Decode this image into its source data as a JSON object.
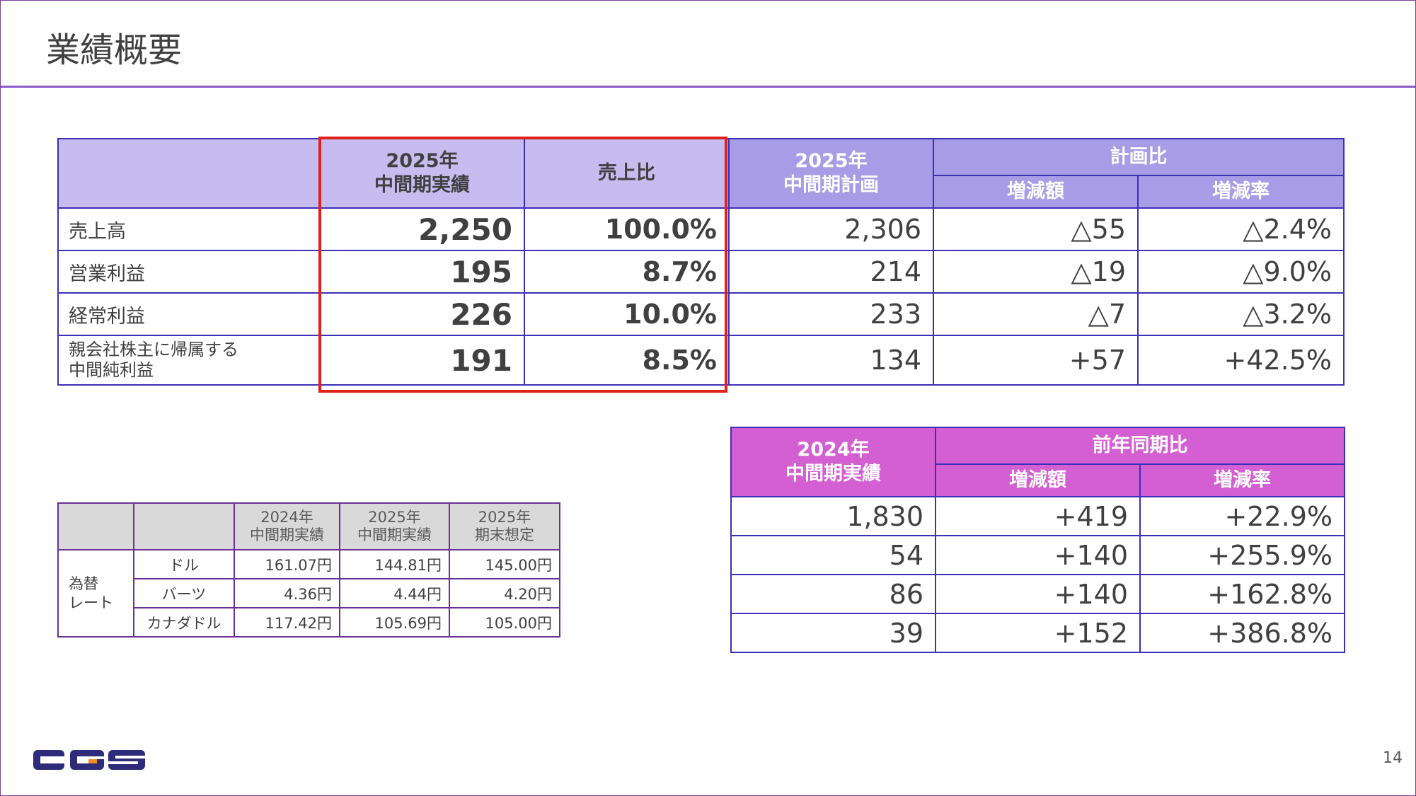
{
  "title": "業績概要",
  "page_number": "14",
  "logo_text": "CGS",
  "main_table": {
    "headers": {
      "actual": "2025年\n中間期実績",
      "ratio": "売上比",
      "plan": "2025年\n中間期計画",
      "vs_plan": "計画比",
      "diff": "増減額",
      "rate": "増減率"
    },
    "rows": [
      {
        "label": "売上高",
        "actual": "2,250",
        "ratio": "100.0%",
        "plan": "2,306",
        "diff": "△55",
        "rate": "△2.4%"
      },
      {
        "label": "営業利益",
        "actual": "195",
        "ratio": "8.7%",
        "plan": "214",
        "diff": "△19",
        "rate": "△9.0%"
      },
      {
        "label": "経常利益",
        "actual": "226",
        "ratio": "10.0%",
        "plan": "233",
        "diff": "△7",
        "rate": "△3.2%"
      },
      {
        "label": "親会社株主に帰属する\n中間純利益",
        "actual": "191",
        "ratio": "8.5%",
        "plan": "134",
        "diff": "+57",
        "rate": "+42.5%"
      }
    ]
  },
  "prior_table": {
    "headers": {
      "actual": "2024年\n中間期実績",
      "yoy": "前年同期比",
      "diff": "増減額",
      "rate": "増減率"
    },
    "rows": [
      {
        "actual": "1,830",
        "diff": "+419",
        "rate": "+22.9%"
      },
      {
        "actual": "54",
        "diff": "+140",
        "rate": "+255.9%"
      },
      {
        "actual": "86",
        "diff": "+140",
        "rate": "+162.8%"
      },
      {
        "actual": "39",
        "diff": "+152",
        "rate": "+386.8%"
      }
    ]
  },
  "fx_table": {
    "headers": {
      "col_2024": "2024年\n中間期実績",
      "col_2025": "2025年\n中間期実績",
      "col_forecast": "2025年\n期末想定"
    },
    "group_label": "為替\nレート",
    "rows": [
      {
        "currency": "ドル",
        "v2024": "161.07円",
        "v2025": "144.81円",
        "forecast": "145.00円"
      },
      {
        "currency": "バーツ",
        "v2024": "4.36円",
        "v2025": "4.44円",
        "forecast": "4.20円"
      },
      {
        "currency": "カナダドル",
        "v2024": "117.42円",
        "v2025": "105.69円",
        "forecast": "105.00円"
      }
    ]
  },
  "colors": {
    "header_light": "#c6bcf0",
    "header_mid": "#a89ce6",
    "header_magenta": "#d45fd2",
    "border": "#3c2fb8",
    "highlight": "#e0201b",
    "title_rule": "#8a5cc8"
  }
}
